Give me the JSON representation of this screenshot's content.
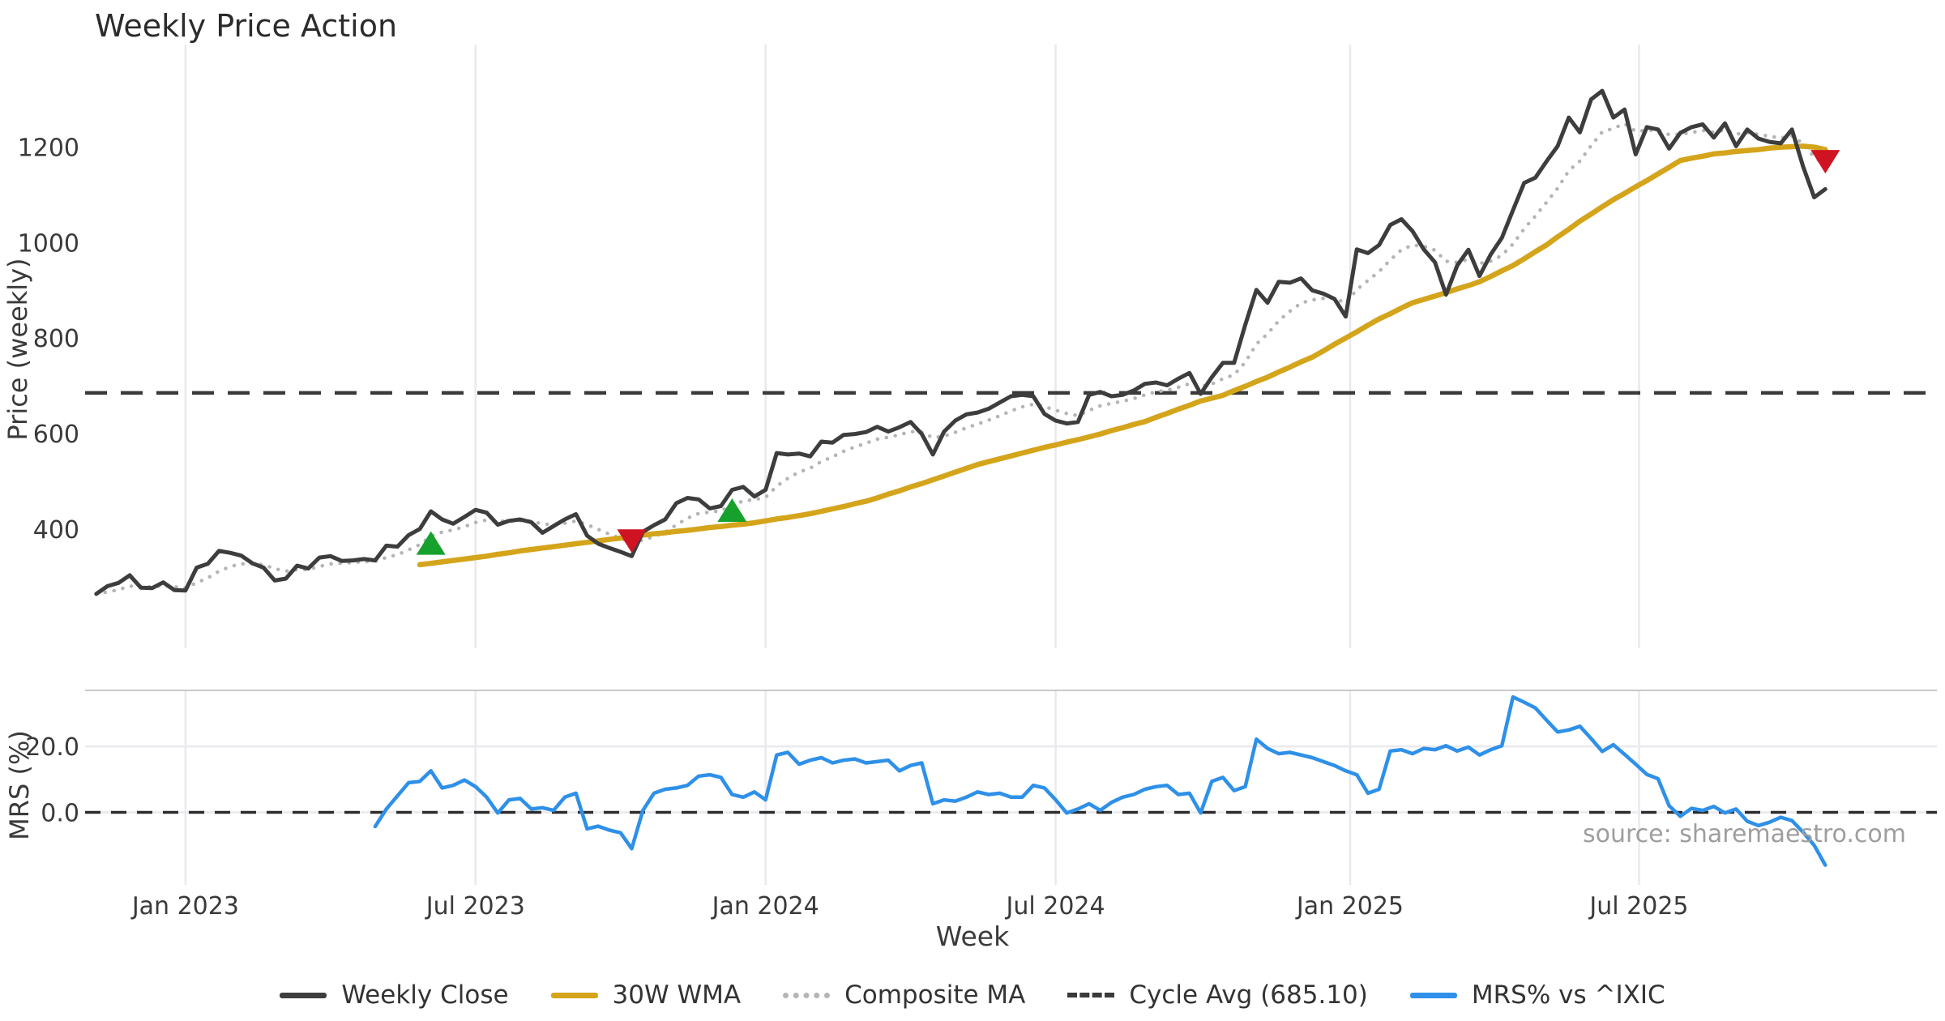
{
  "title": "Weekly Price Action",
  "source_note": "source: sharemaestro.com",
  "xlabel": "Week",
  "ylabel_main": "Price (weekly)",
  "ylabel_sub": "MRS (%)",
  "colors": {
    "background": "#ffffff",
    "weekly_close": "#3d3d3d",
    "wma": "#d4a41b",
    "composite": "#b5b5b5",
    "cycle_avg": "#3a3a3a",
    "mrs": "#2e90e8",
    "buy_marker": "#16a12c",
    "sell_marker": "#cf1322",
    "gridline": "#e9e9ee",
    "spine": "#c8c8c8",
    "tick_text": "#3a3a3a"
  },
  "legend": {
    "items": [
      {
        "label": "Weekly Close",
        "color": "#3d3d3d",
        "style": "solid"
      },
      {
        "label": "30W WMA",
        "color": "#d4a41b",
        "style": "solid"
      },
      {
        "label": "Composite MA",
        "color": "#b5b5b5",
        "style": "dotted"
      },
      {
        "label": "Cycle Avg (685.10)",
        "color": "#3a3a3a",
        "style": "dashed"
      },
      {
        "label": "MRS% vs ^IXIC",
        "color": "#2e90e8",
        "style": "solid"
      }
    ]
  },
  "chart_data": {
    "type": "line",
    "title": "Weekly Price Action",
    "xlabel": "Week",
    "x_unit": "week_index_from_2022-11-07",
    "xlim": [
      -1,
      165
    ],
    "x_ticks": [
      {
        "pos": 8,
        "label": "Jan 2023"
      },
      {
        "pos": 34,
        "label": "Jul 2023"
      },
      {
        "pos": 60,
        "label": "Jan 2024"
      },
      {
        "pos": 86,
        "label": "Jul 2024"
      },
      {
        "pos": 112.4,
        "label": "Jan 2025"
      },
      {
        "pos": 138.3,
        "label": "Jul 2025"
      }
    ],
    "panels": [
      {
        "name": "price",
        "ylabel": "Price (weekly)",
        "ylim": [
          150,
          1415
        ],
        "y_ticks": [
          {
            "v": 400,
            "label": "400"
          },
          {
            "v": 600,
            "label": "600"
          },
          {
            "v": 800,
            "label": "800"
          },
          {
            "v": 1000,
            "label": "1000"
          },
          {
            "v": 1200,
            "label": "1200"
          }
        ],
        "grid": "vertical-only"
      },
      {
        "name": "mrs",
        "ylabel": "MRS (%)",
        "ylim": [
          -22,
          37
        ],
        "y_ticks": [
          {
            "v": 0,
            "label": "0.0"
          },
          {
            "v": 20,
            "label": "20.0"
          }
        ],
        "grid": "both"
      }
    ],
    "series": [
      {
        "name": "Weekly Close",
        "panel": "price",
        "style": "solid",
        "color_key": "weekly_close",
        "start_week": 0,
        "values": [
          264,
          280,
          287,
          303,
          277,
          276,
          288,
          272,
          271,
          319,
          327,
          354,
          350,
          344,
          328,
          319,
          292,
          296,
          323,
          317,
          340,
          343,
          333,
          334,
          337,
          334,
          365,
          363,
          387,
          400,
          437,
          420,
          411,
          425,
          440,
          434,
          409,
          417,
          420,
          414,
          392,
          406,
          420,
          431,
          386,
          369,
          360,
          352,
          343,
          394,
          408,
          420,
          454,
          465,
          462,
          443,
          448,
          482,
          488,
          468,
          482,
          559,
          556,
          558,
          552,
          583,
          581,
          597,
          599,
          603,
          614,
          604,
          613,
          624,
          599,
          556,
          604,
          627,
          640,
          644,
          652,
          665,
          678,
          681,
          678,
          641,
          627,
          621,
          624,
          681,
          687,
          678,
          681,
          690,
          704,
          707,
          701,
          715,
          727,
          683,
          718,
          748,
          748,
          828,
          901,
          874,
          918,
          916,
          925,
          900,
          893,
          882,
          845,
          986,
          978,
          995,
          1037,
          1049,
          1024,
          986,
          959,
          891,
          952,
          985,
          930,
          975,
          1010,
          1068,
          1125,
          1136,
          1170,
          1202,
          1262,
          1231,
          1300,
          1318,
          1262,
          1279,
          1185,
          1242,
          1237,
          1197,
          1230,
          1242,
          1248,
          1220,
          1250,
          1202,
          1237,
          1218,
          1211,
          1208,
          1237,
          1160,
          1095,
          1112
        ]
      },
      {
        "name": "30W WMA",
        "panel": "price",
        "style": "solid",
        "color_key": "wma",
        "start_week": 29,
        "values": [
          325,
          328,
          331,
          334,
          337,
          340,
          343,
          347,
          350,
          354,
          357,
          360,
          363,
          366,
          369,
          372,
          375,
          378,
          381,
          384,
          387,
          390,
          392,
          395,
          397,
          400,
          403,
          405,
          408,
          410,
          413,
          417,
          421,
          424,
          428,
          432,
          437,
          442,
          447,
          453,
          458,
          465,
          473,
          480,
          488,
          495,
          503,
          511,
          519,
          527,
          535,
          541,
          547,
          553,
          559,
          565,
          571,
          576,
          582,
          587,
          593,
          599,
          606,
          612,
          619,
          625,
          634,
          642,
          651,
          659,
          668,
          674,
          680,
          690,
          699,
          709,
          718,
          729,
          739,
          750,
          760,
          773,
          787,
          800,
          813,
          827,
          840,
          851,
          863,
          874,
          881,
          888,
          895,
          903,
          910,
          918,
          929,
          941,
          952,
          966,
          981,
          995,
          1012,
          1028,
          1045,
          1060,
          1075,
          1090,
          1103,
          1117,
          1130,
          1144,
          1158,
          1172,
          1177,
          1181,
          1186,
          1188,
          1191,
          1193,
          1195,
          1198,
          1200,
          1201,
          1202,
          1200,
          1195
        ]
      },
      {
        "name": "Composite MA",
        "panel": "price",
        "style": "dotted",
        "color_key": "composite",
        "derived_from": "Weekly Close",
        "derivation": "ema_alpha_0.25"
      },
      {
        "name": "Cycle Avg (685.10)",
        "panel": "price",
        "style": "dashed",
        "color_key": "cycle_avg",
        "constant": 685.1
      },
      {
        "name": "MRS% vs ^IXIC",
        "panel": "mrs",
        "style": "solid",
        "color_key": "mrs",
        "start_week": 25,
        "values": [
          -4.3,
          1.0,
          5.0,
          9.0,
          9.4,
          12.6,
          7.4,
          8.2,
          9.8,
          7.8,
          4.6,
          -0.2,
          3.8,
          4.2,
          1.0,
          1.4,
          0.6,
          4.6,
          5.8,
          -5.0,
          -4.2,
          -5.4,
          -6.2,
          -11.0,
          0.6,
          5.8,
          7.0,
          7.4,
          8.2,
          11.0,
          11.4,
          10.6,
          5.4,
          4.6,
          6.2,
          3.8,
          17.4,
          18.2,
          14.6,
          15.8,
          16.6,
          15.0,
          15.8,
          16.2,
          15.0,
          15.4,
          15.8,
          12.6,
          14.2,
          15.0,
          2.6,
          3.8,
          3.4,
          4.6,
          6.2,
          5.4,
          5.8,
          4.6,
          4.6,
          8.2,
          7.4,
          3.8,
          -0.2,
          1.0,
          2.6,
          0.6,
          3.0,
          4.6,
          5.4,
          7.0,
          7.8,
          8.2,
          5.4,
          5.8,
          -0.2,
          9.4,
          10.6,
          6.6,
          7.8,
          22.2,
          19.4,
          17.8,
          18.2,
          17.4,
          16.6,
          15.4,
          14.2,
          12.6,
          11.4,
          5.8,
          7.0,
          18.6,
          19.0,
          17.8,
          19.4,
          19.0,
          20.2,
          18.6,
          19.8,
          17.4,
          19.0,
          20.2,
          35.0,
          33.4,
          31.7,
          28.0,
          24.4,
          25.0,
          26.1,
          22.4,
          18.5,
          20.5,
          17.6,
          14.6,
          11.5,
          10.2,
          2.0,
          -1.2,
          1.2,
          0.6,
          1.8,
          -0.2,
          1.0,
          -2.7,
          -4.0,
          -3.0,
          -1.5,
          -2.5,
          -6.0,
          -10.0,
          -16.0
        ]
      }
    ],
    "markers": {
      "buy_signals": [
        {
          "week": 30,
          "price": 368
        },
        {
          "week": 57,
          "price": 437
        }
      ],
      "sell_signals": [
        {
          "week": 48,
          "price": 377
        },
        {
          "week": 155,
          "price": 1172
        }
      ]
    },
    "zero_line_sub": 0.0
  }
}
